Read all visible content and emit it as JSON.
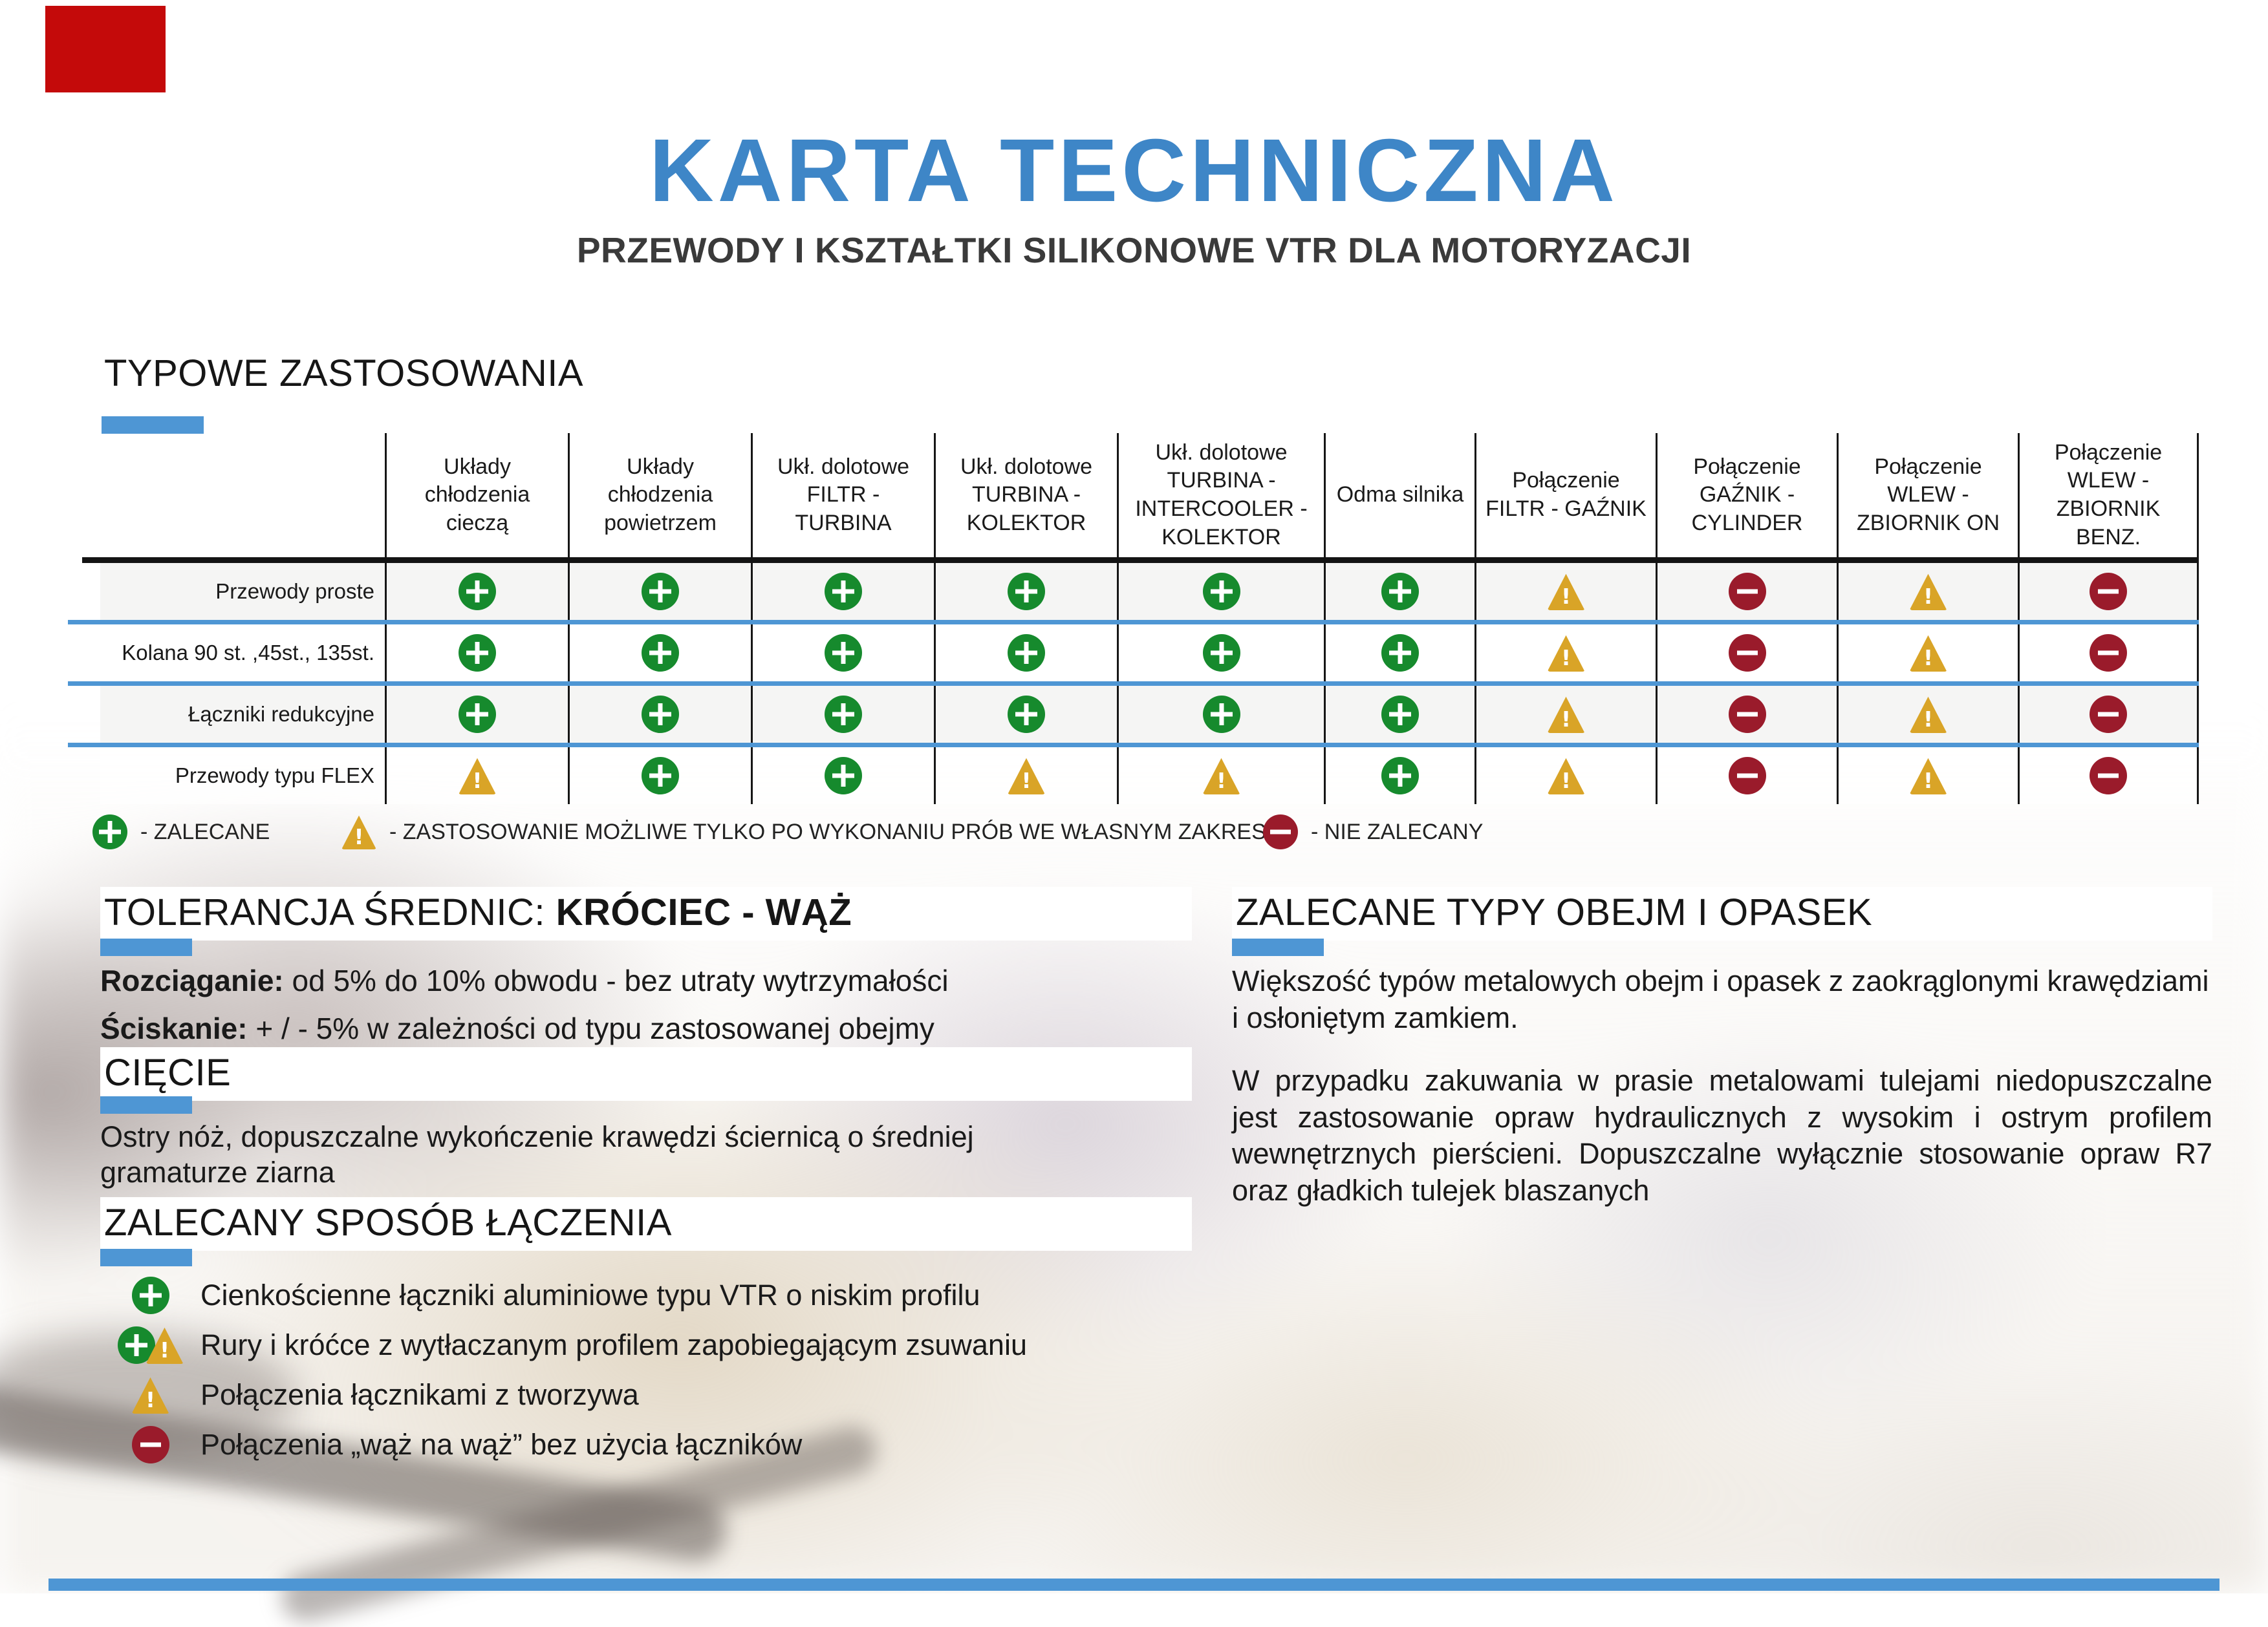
{
  "page": {
    "title": "KARTA TECHNICZNA",
    "subtitle": "PRZEWODY I KSZTAŁTKI SILIKONOWE VTR DLA MOTORYZACJI",
    "accent_blue": "#4E96D4",
    "title_blue": "#3E86C7",
    "green": "#168A2D",
    "amber": "#D9A427",
    "dark_red": "#9A1B2B",
    "red_block": "#C40A0A"
  },
  "applications": {
    "heading": "TYPOWE ZASTOSOWANIA",
    "columns": [
      "Układy chłodzenia cieczą",
      "Układy chłodzenia powietrzem",
      "Ukł. dolotowe FILTR - TURBINA",
      "Ukł. dolotowe TURBINA - KOLEKTOR",
      "Ukł. dolotowe TURBINA - INTERCOOLER - KOLEKTOR",
      "Odma silnika",
      "Połączenie FILTR - GAŹNIK",
      "Połączenie GAŹNIK - CYLINDER",
      "Połączenie WLEW - ZBIORNIK ON",
      "Połączenie WLEW - ZBIORNIK BENZ."
    ],
    "rows": [
      {
        "label": "Przewody proste",
        "cells": [
          "plus",
          "plus",
          "plus",
          "plus",
          "plus",
          "plus",
          "warn",
          "minus",
          "warn",
          "minus"
        ]
      },
      {
        "label": "Kolana 90 st. ,45st., 135st.",
        "cells": [
          "plus",
          "plus",
          "plus",
          "plus",
          "plus",
          "plus",
          "warn",
          "minus",
          "warn",
          "minus"
        ]
      },
      {
        "label": "Łączniki redukcyjne",
        "cells": [
          "plus",
          "plus",
          "plus",
          "plus",
          "plus",
          "plus",
          "warn",
          "minus",
          "warn",
          "minus"
        ]
      },
      {
        "label": "Przewody typu FLEX",
        "cells": [
          "warn",
          "plus",
          "plus",
          "warn",
          "warn",
          "plus",
          "warn",
          "minus",
          "warn",
          "minus"
        ]
      }
    ],
    "legend": [
      {
        "icon": "plus",
        "text": "- ZALECANE"
      },
      {
        "icon": "warn",
        "text": "- ZASTOSOWANIE MOŻLIWE TYLKO PO WYKONANIU PRÓB WE WŁASNYM ZAKRESIE"
      },
      {
        "icon": "minus",
        "text": "- NIE ZALECANY"
      }
    ]
  },
  "tolerance": {
    "heading_normal": "TOLERANCJA ŚREDNIC:",
    "heading_bold": "KRÓCIEC - WĄŻ",
    "lines": [
      {
        "label": "Rozciąganie:",
        "text": "od 5% do 10% obwodu - bez utraty wytrzymałości"
      },
      {
        "label": "Ściskanie:",
        "text": "+ / -  5%  w zależności od typu zastosowanej obejmy"
      }
    ]
  },
  "cutting": {
    "heading": "CIĘCIE",
    "text": "Ostry nóż, dopuszczalne wykończenie krawędzi ściernicą  o średniej gramaturze ziarna"
  },
  "joining": {
    "heading": "ZALECANY SPOSÓB ŁĄCZENIA",
    "items": [
      {
        "icons": [
          "plus"
        ],
        "text": "Cienkościenne łączniki aluminiowe typu VTR o niskim profilu"
      },
      {
        "icons": [
          "plus",
          "warn"
        ],
        "text": "Rury i króćce z wytłaczanym profilem zapobiegającym zsuwaniu"
      },
      {
        "icons": [
          "warn"
        ],
        "text": "Połączenia łącznikami z tworzywa"
      },
      {
        "icons": [
          "minus"
        ],
        "text": "Połączenia „wąż na wąż” bez użycia łączników"
      }
    ]
  },
  "clamps": {
    "heading": "ZALECANE TYPY OBEJM I OPASEK",
    "paragraphs": [
      "Większość typów metalowych obejm i opasek  z zaokrąglonymi krawędziami i osłoniętym zamkiem.",
      "W przypadku zakuwania w prasie metalowami tulejami niedopuszczalne jest zastosowanie opraw hydraulicznych z wysokim i ostrym profilem wewnętrznych pierścieni. Dopuszczalne wyłącznie stosowanie opraw R7 oraz gładkich tulejek blaszanych"
    ]
  }
}
